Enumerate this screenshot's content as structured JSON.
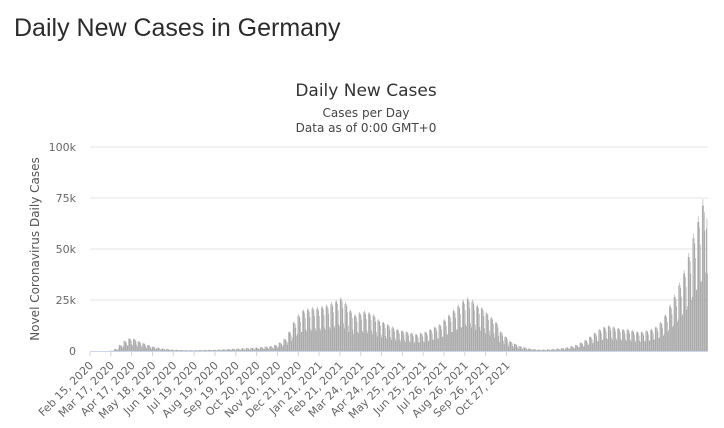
{
  "page": {
    "heading": "Daily New Cases in Germany"
  },
  "chart_data": {
    "type": "bar",
    "title": "Daily New Cases",
    "subtitle_lines": [
      "Cases per Day",
      "Data as of 0:00 GMT+0"
    ],
    "xlabel": "",
    "ylabel": "Novel Coronavirus Daily Cases",
    "ylim": [
      0,
      100000
    ],
    "y_ticks": [
      {
        "value": 0,
        "label": "0"
      },
      {
        "value": 25000,
        "label": "25k"
      },
      {
        "value": 50000,
        "label": "50k"
      },
      {
        "value": 75000,
        "label": "75k"
      },
      {
        "value": 100000,
        "label": "100k"
      }
    ],
    "x_start": "Feb 15, 2020",
    "x_end": "Nov 25, 2021",
    "x_tick_labels": [
      "Feb 15, 2020",
      "Mar 17, 2020",
      "Apr 17, 2020",
      "May 18, 2020",
      "Jun 18, 2020",
      "Jul 19, 2020",
      "Aug 19, 2020",
      "Sep 19, 2020",
      "Oct 20, 2020",
      "Nov 20, 2020",
      "Dec 21, 2020",
      "Jan 21, 2021",
      "Feb 21, 2021",
      "Mar 24, 2021",
      "Apr 24, 2021",
      "May 25, 2021",
      "Jun 25, 2021",
      "Jul 26, 2021",
      "Aug 26, 2021",
      "Sep 26, 2021",
      "Oct 27, 2021"
    ],
    "grid": true,
    "legend": "none",
    "bar_color": "#a0a0a0",
    "weekly_pattern": [
      0.55,
      1.15,
      1.2,
      1.15,
      1.1,
      0.95,
      0.62
    ],
    "series": [
      {
        "values_weekly_avg": [
          0,
          0,
          0,
          0,
          100,
          800,
          2500,
          4200,
          5200,
          5000,
          4000,
          3200,
          2500,
          1800,
          1400,
          1000,
          800,
          600,
          500,
          400,
          400,
          350,
          350,
          400,
          450,
          500,
          500,
          600,
          700,
          800,
          900,
          1000,
          1100,
          1200,
          1300,
          1400,
          1600,
          1800,
          2000,
          2500,
          3500,
          5000,
          8000,
          12000,
          15000,
          17000,
          17500,
          18000,
          18000,
          18500,
          19000,
          20000,
          21000,
          22000,
          20000,
          17000,
          15000,
          16000,
          16500,
          16000,
          15000,
          13000,
          12000,
          11000,
          10000,
          9000,
          8500,
          8000,
          7500,
          7000,
          7500,
          8000,
          9000,
          10000,
          11000,
          13000,
          15000,
          17000,
          19000,
          21000,
          22000,
          21000,
          19000,
          18000,
          16000,
          14000,
          12000,
          8000,
          6000,
          4000,
          3000,
          2000,
          1500,
          1000,
          800,
          600,
          600,
          700,
          800,
          1000,
          1200,
          1500,
          2000,
          2500,
          3500,
          4500,
          6000,
          7500,
          9000,
          10000,
          10500,
          10000,
          9500,
          9000,
          9000,
          8500,
          8000,
          8000,
          8500,
          9000,
          10000,
          12000,
          15000,
          19000,
          23000,
          28000,
          33000,
          40000,
          48000,
          55000,
          62000
        ],
        "values_last_days": [
          60000,
          65000,
          38000
        ]
      }
    ]
  }
}
